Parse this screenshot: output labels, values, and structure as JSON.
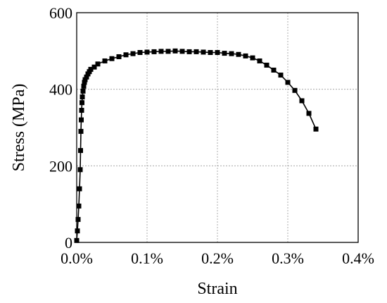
{
  "chart_data": {
    "type": "line",
    "title": "",
    "xlabel": "Strain",
    "ylabel": "Stress (MPa)",
    "xlim": [
      0,
      0.004
    ],
    "ylim": [
      0,
      600
    ],
    "xticks": [
      0,
      0.001,
      0.002,
      0.003,
      0.004
    ],
    "xtick_labels": [
      "0.0%",
      "0.1%",
      "0.2%",
      "0.3%",
      "0.4%"
    ],
    "yticks": [
      0,
      200,
      400,
      600
    ],
    "ytick_labels": [
      "0",
      "200",
      "400",
      "600"
    ],
    "grid": true,
    "legend": "none",
    "marker": "square",
    "color": "#000000",
    "series": [
      {
        "x": [
          0.0,
          1e-05,
          2e-05,
          3e-05,
          4e-05,
          5e-05,
          5.5e-05,
          6e-05,
          6.5e-05,
          7e-05,
          7.5e-05,
          8e-05,
          9e-05,
          0.0001,
          0.00011,
          0.00012,
          0.00014,
          0.00016,
          0.00018,
          0.0002,
          0.00025,
          0.0003,
          0.0004,
          0.0005,
          0.0006,
          0.0007,
          0.0008,
          0.0009,
          0.001,
          0.0011,
          0.0012,
          0.0013,
          0.0014,
          0.0015,
          0.0016,
          0.0017,
          0.0018,
          0.0019,
          0.002,
          0.0021,
          0.0022,
          0.0023,
          0.0024,
          0.0025,
          0.0026,
          0.0027,
          0.0028,
          0.0029,
          0.003,
          0.0031,
          0.0032,
          0.0033,
          0.0034
        ],
        "y": [
          5,
          30,
          60,
          95,
          140,
          190,
          240,
          290,
          320,
          345,
          365,
          380,
          395,
          408,
          418,
          425,
          432,
          440,
          446,
          452,
          458,
          466,
          474,
          480,
          485,
          490,
          493,
          496,
          497,
          498,
          499,
          499,
          500,
          499,
          498,
          498,
          497,
          496,
          496,
          494,
          493,
          491,
          487,
          482,
          474,
          463,
          450,
          437,
          418,
          397,
          370,
          337,
          296
        ]
      }
    ]
  }
}
